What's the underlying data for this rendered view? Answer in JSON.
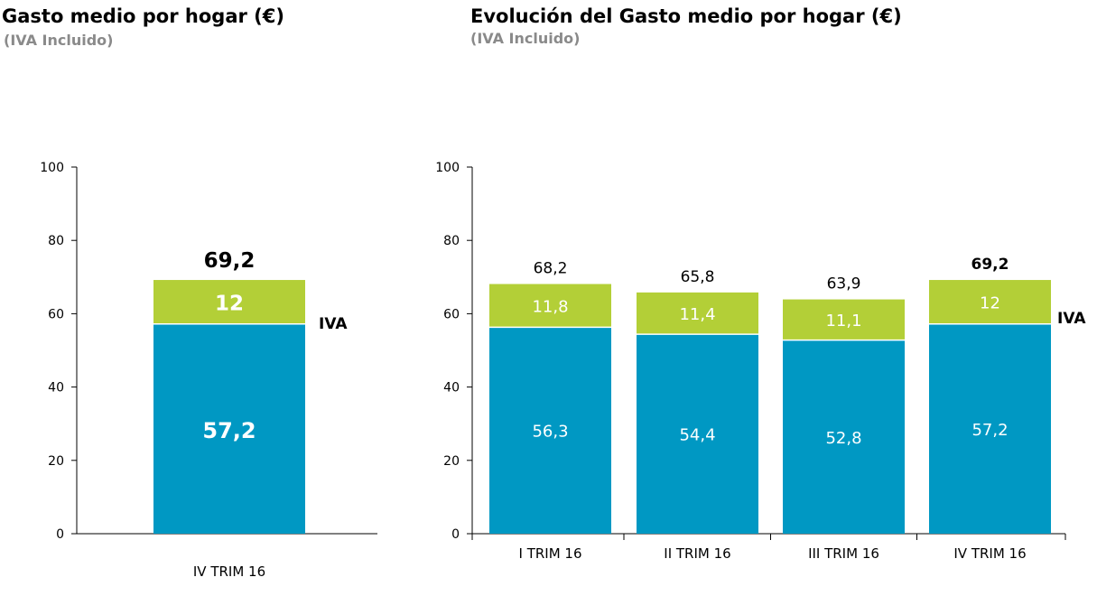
{
  "colors": {
    "base": "#0098c3",
    "iva": "#b3cf37",
    "axis": "#000000"
  },
  "chart_data": [
    {
      "type": "bar",
      "stacked": true,
      "title": "Gasto medio por hogar (€)",
      "subtitle": "(IVA Incluido)",
      "categories": [
        "IV TRIM 16"
      ],
      "series": [
        {
          "values": [
            57.2
          ]
        },
        {
          "name": "IVA",
          "values": [
            12
          ]
        }
      ],
      "value_labels": [
        [
          "57,2"
        ],
        [
          "12"
        ]
      ],
      "totals": [
        69.2
      ],
      "total_labels": [
        "69,2"
      ],
      "ylim": [
        0,
        100
      ],
      "yticks": [
        0,
        20,
        40,
        60,
        80,
        100
      ],
      "grid": false
    },
    {
      "type": "bar",
      "stacked": true,
      "title": "Evolución del Gasto medio por hogar (€)",
      "subtitle": "(IVA Incluido)",
      "categories": [
        "I TRIM 16",
        "II TRIM 16",
        "III TRIM 16",
        "IV TRIM 16"
      ],
      "series": [
        {
          "values": [
            56.3,
            54.4,
            52.8,
            57.2
          ]
        },
        {
          "name": "IVA",
          "values": [
            11.8,
            11.4,
            11.1,
            12
          ]
        }
      ],
      "value_labels": [
        [
          "56,3",
          "54,4",
          "52,8",
          "57,2"
        ],
        [
          "11,8",
          "11,4",
          "11,1",
          "12"
        ]
      ],
      "totals": [
        68.2,
        65.8,
        63.9,
        69.2
      ],
      "total_labels": [
        "68,2",
        "65,8",
        "63,9",
        "69,2"
      ],
      "ylim": [
        0,
        100
      ],
      "yticks": [
        0,
        20,
        40,
        60,
        80,
        100
      ],
      "grid": false
    }
  ]
}
